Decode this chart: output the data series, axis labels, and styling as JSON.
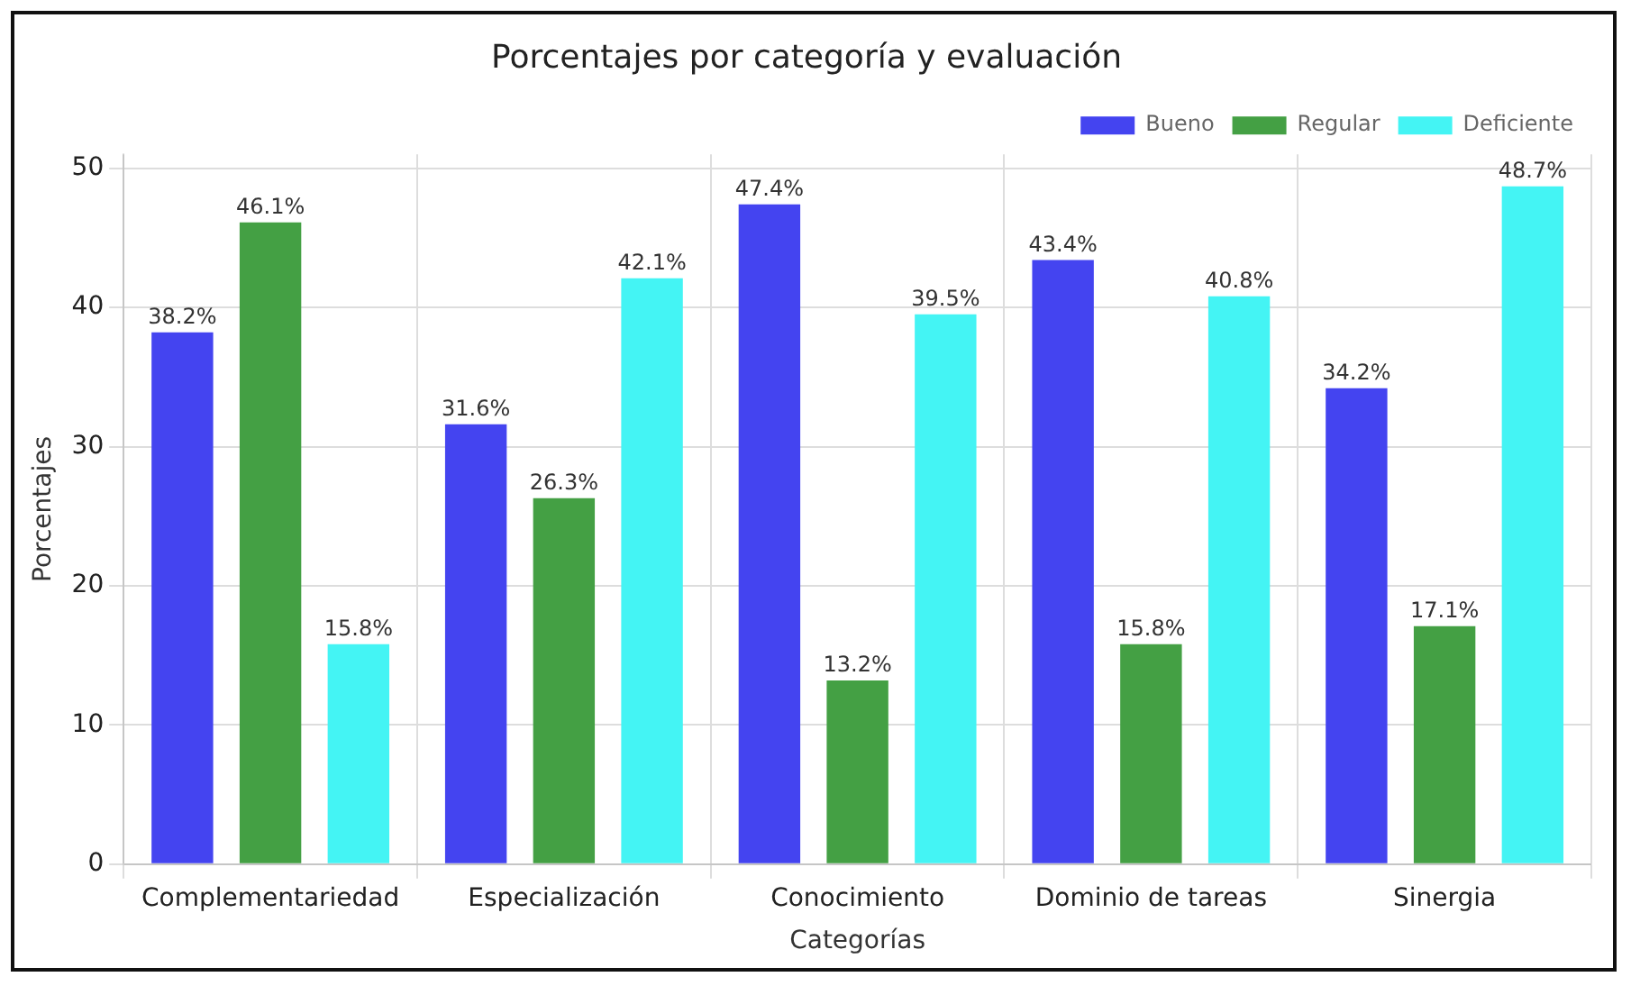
{
  "chart_data": {
    "type": "bar",
    "title": "Porcentajes por categoría y evaluación",
    "xlabel": "Categorías",
    "ylabel": "Porcentajes",
    "categories": [
      "Complementariedad",
      "Especialización",
      "Conocimiento",
      "Dominio de tareas",
      "Sinergia"
    ],
    "series": [
      {
        "name": "Bueno",
        "color": "#4444f0",
        "values": [
          38.2,
          31.6,
          47.4,
          43.4,
          34.2
        ],
        "value_labels": [
          "38.2%",
          "31.6%",
          "47.4%",
          "43.4%",
          "34.2%"
        ]
      },
      {
        "name": "Regular",
        "color": "#44a044",
        "values": [
          46.1,
          26.3,
          13.2,
          15.8,
          17.1
        ],
        "value_labels": [
          "46.1%",
          "26.3%",
          "13.2%",
          "15.8%",
          "17.1%"
        ]
      },
      {
        "name": "Deficiente",
        "color": "#44f4f4",
        "values": [
          15.8,
          42.1,
          39.5,
          40.8,
          48.7
        ],
        "value_labels": [
          "15.8%",
          "42.1%",
          "39.5%",
          "40.8%",
          "48.7%"
        ]
      }
    ],
    "ylim": [
      0,
      51
    ],
    "yticks": [
      0,
      10,
      20,
      30,
      40,
      50
    ],
    "grid": true,
    "legend": "top right"
  }
}
